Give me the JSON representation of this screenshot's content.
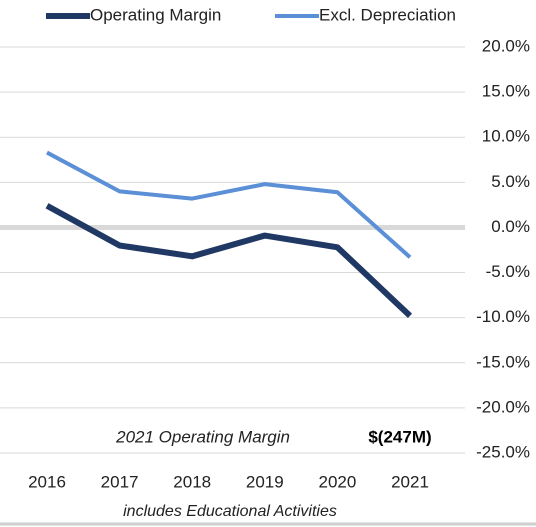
{
  "chart_data": {
    "type": "line",
    "categories": [
      "2016",
      "2017",
      "2018",
      "2019",
      "2020",
      "2021"
    ],
    "series": [
      {
        "name": "Operating Margin",
        "color": "#203864",
        "values": [
          2.4,
          -2.0,
          -3.2,
          -0.9,
          -2.2,
          -9.8
        ]
      },
      {
        "name": "Excl. Depreciation",
        "color": "#5b8fd6",
        "values": [
          8.3,
          4.0,
          3.2,
          4.8,
          3.9,
          -3.3
        ]
      }
    ],
    "ylim": [
      -25,
      20
    ],
    "yticks": [
      {
        "value": 20,
        "label": "20.0%"
      },
      {
        "value": 15,
        "label": "15.0%"
      },
      {
        "value": 10,
        "label": "10.0%"
      },
      {
        "value": 5,
        "label": "5.0%"
      },
      {
        "value": 0,
        "label": "0.0%"
      },
      {
        "value": -5,
        "label": "-5.0%"
      },
      {
        "value": -10,
        "label": "-10.0%"
      },
      {
        "value": -15,
        "label": "-15.0%"
      },
      {
        "value": -20,
        "label": "-20.0%"
      },
      {
        "value": -25,
        "label": "-25.0%"
      }
    ],
    "grid": true,
    "legend": "top",
    "annotation": {
      "text": "2021 Operating Margin",
      "value_text": "$(247M)"
    },
    "footnote": "includes Educational Activities"
  }
}
